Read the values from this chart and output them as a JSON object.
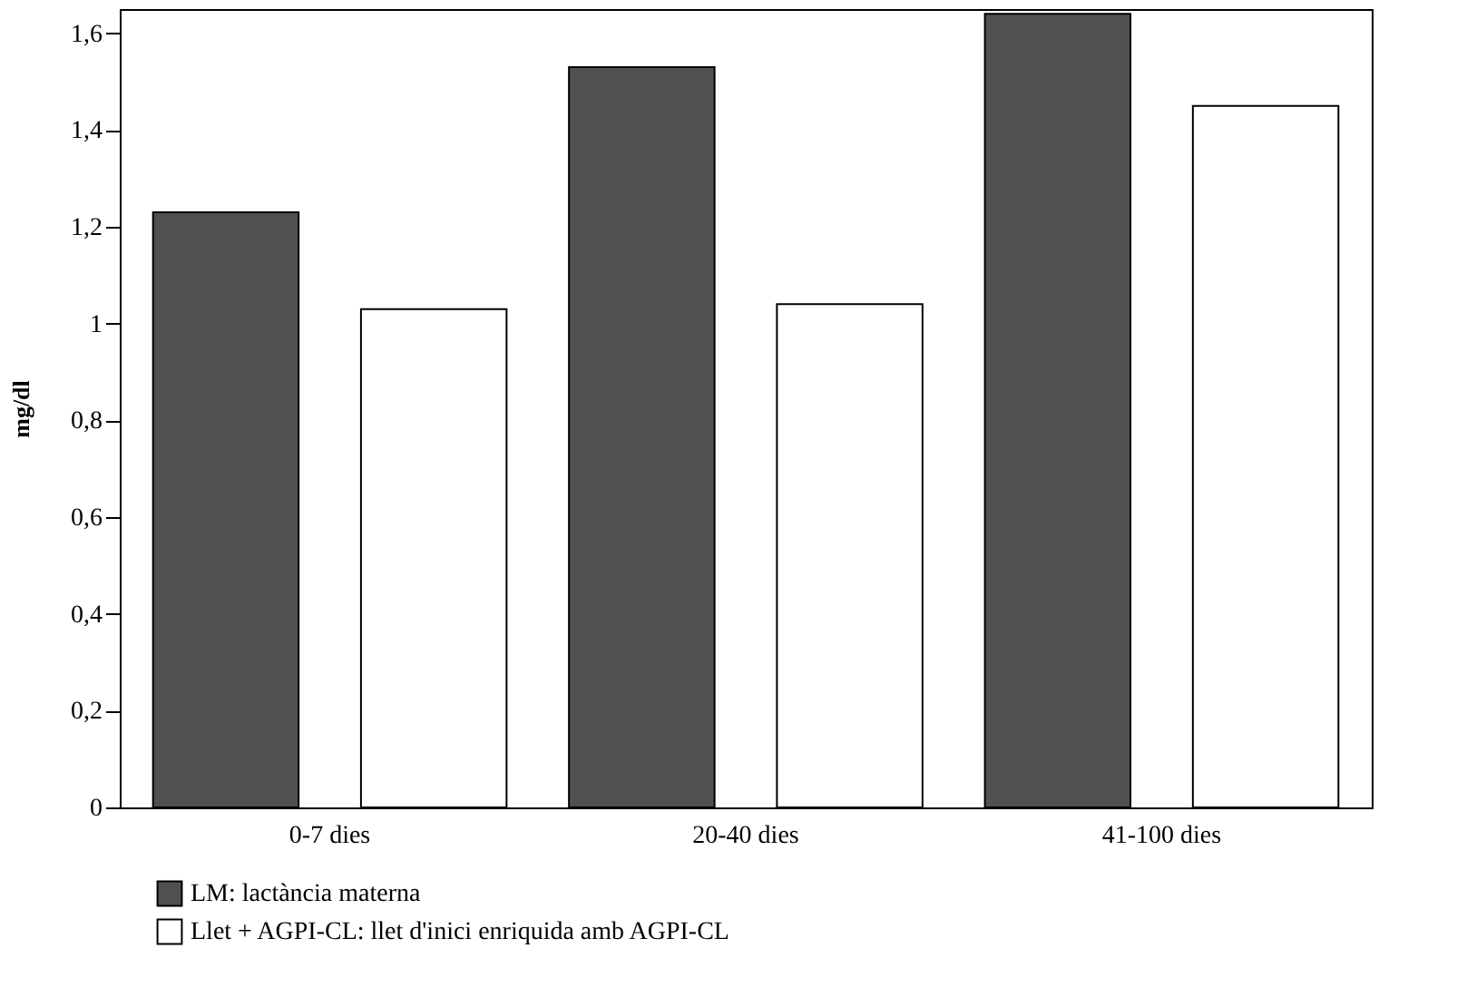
{
  "chart_data": {
    "type": "bar",
    "ylabel": "mg/dl",
    "categories": [
      "0-7 dies",
      "20-40 dies",
      "41-100 dies"
    ],
    "series": [
      {
        "name": "LM: lactància materna",
        "color": "#505050",
        "values": [
          1.23,
          1.53,
          1.64
        ]
      },
      {
        "name": "Llet + AGPI-CL: llet d'inici enriquida amb AGPI-CL",
        "color": "#ffffff",
        "values": [
          1.03,
          1.04,
          1.45
        ]
      }
    ],
    "ylim": [
      0,
      1.65
    ],
    "yticks": [
      0,
      {
        "value": 0.2,
        "label": "0,2"
      },
      {
        "value": 0.4,
        "label": "0,4"
      },
      {
        "value": 0.6,
        "label": "0,6"
      },
      {
        "value": 0.8,
        "label": "0,8"
      },
      1,
      {
        "value": 1.2,
        "label": "1,2"
      },
      {
        "value": 1.4,
        "label": "1,4"
      },
      {
        "value": 1.6,
        "label": "1,6"
      }
    ],
    "grid": false,
    "legend": "bottom left"
  }
}
